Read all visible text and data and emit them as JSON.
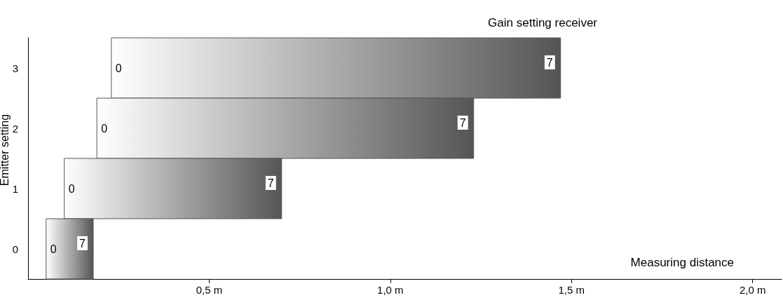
{
  "chart_data": {
    "type": "bar",
    "orientation": "horizontal",
    "xlabel": "Measuring distance",
    "ylabel": "Emitter setting",
    "categories": [
      "3",
      "2",
      "1",
      "0"
    ],
    "base": [
      0.23,
      0.19,
      0.1,
      0.05
    ],
    "values": [
      1.24,
      1.04,
      0.6,
      0.13
    ],
    "color": "#555555",
    "xlim": [
      0,
      2.08
    ],
    "xticks": [
      {
        "value": 0.5,
        "label": "0,5 m"
      },
      {
        "value": 1.0,
        "label": "1,0 m"
      },
      {
        "value": 1.5,
        "label": "1,5 m"
      },
      {
        "value": 2.0,
        "label": "2,0 m"
      }
    ],
    "grid": false,
    "annotations": [
      "Gain setting receiver",
      {
        "text": "0",
        "x": 0.23,
        "y": "3"
      },
      {
        "text": "7",
        "x": 1.47,
        "y": "3"
      },
      {
        "text": "0",
        "x": 0.19,
        "y": "2"
      },
      {
        "text": "7",
        "x": 1.23,
        "y": "2"
      },
      {
        "text": "0",
        "x": 0.1,
        "y": "1"
      },
      {
        "text": "7",
        "x": 0.7,
        "y": "1"
      },
      {
        "text": "0",
        "x": 0.05,
        "y": "0"
      },
      {
        "text": "7",
        "x": 0.18,
        "y": "0"
      }
    ]
  }
}
